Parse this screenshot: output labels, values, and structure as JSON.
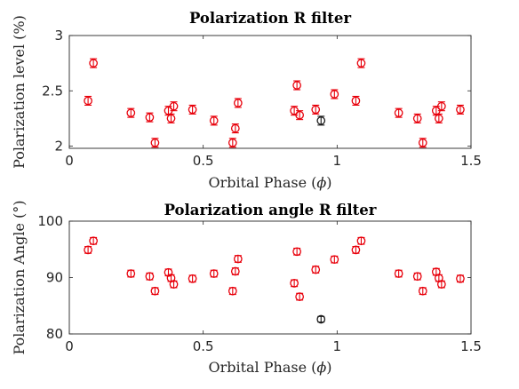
{
  "chart_data": [
    {
      "type": "scatter",
      "title": "Polarization R filter",
      "xlabel_prefix": "Orbital Phase (",
      "xlabel_symbol": "ϕ",
      "xlabel_suffix": ")",
      "ylabel": "Polarization level (%)",
      "xlim": [
        0,
        1.5
      ],
      "ylim": [
        1.98,
        3.0
      ],
      "xticks": [
        0,
        0.5,
        1,
        1.5
      ],
      "xtick_labels": [
        "0",
        "0.5",
        "1",
        "1.5"
      ],
      "yticks": [
        2,
        2.5,
        3
      ],
      "ytick_labels": [
        "2",
        "2.5",
        "3"
      ],
      "grid": false,
      "series": [
        {
          "color": "#e8000b",
          "marker": "circle-open",
          "errorbars": true,
          "points": [
            {
              "x": 0.07,
              "y": 2.41,
              "err": 0.04
            },
            {
              "x": 0.09,
              "y": 2.75,
              "err": 0.04
            },
            {
              "x": 0.23,
              "y": 2.3,
              "err": 0.04
            },
            {
              "x": 0.3,
              "y": 2.26,
              "err": 0.04
            },
            {
              "x": 0.32,
              "y": 2.03,
              "err": 0.04
            },
            {
              "x": 0.37,
              "y": 2.32,
              "err": 0.04
            },
            {
              "x": 0.38,
              "y": 2.25,
              "err": 0.04
            },
            {
              "x": 0.39,
              "y": 2.36,
              "err": 0.04
            },
            {
              "x": 0.46,
              "y": 2.33,
              "err": 0.04
            },
            {
              "x": 0.54,
              "y": 2.23,
              "err": 0.04
            },
            {
              "x": 0.61,
              "y": 2.03,
              "err": 0.04
            },
            {
              "x": 0.62,
              "y": 2.16,
              "err": 0.04
            },
            {
              "x": 0.63,
              "y": 2.39,
              "err": 0.04
            },
            {
              "x": 0.84,
              "y": 2.32,
              "err": 0.04
            },
            {
              "x": 0.85,
              "y": 2.55,
              "err": 0.04
            },
            {
              "x": 0.86,
              "y": 2.28,
              "err": 0.04
            },
            {
              "x": 0.92,
              "y": 2.33,
              "err": 0.04
            },
            {
              "x": 0.99,
              "y": 2.47,
              "err": 0.04
            },
            {
              "x": 1.07,
              "y": 2.41,
              "err": 0.04
            },
            {
              "x": 1.09,
              "y": 2.75,
              "err": 0.04
            },
            {
              "x": 1.23,
              "y": 2.3,
              "err": 0.04
            },
            {
              "x": 1.3,
              "y": 2.25,
              "err": 0.04
            },
            {
              "x": 1.32,
              "y": 2.03,
              "err": 0.04
            },
            {
              "x": 1.37,
              "y": 2.32,
              "err": 0.04
            },
            {
              "x": 1.38,
              "y": 2.25,
              "err": 0.04
            },
            {
              "x": 1.39,
              "y": 2.36,
              "err": 0.04
            },
            {
              "x": 1.46,
              "y": 2.33,
              "err": 0.04
            }
          ]
        },
        {
          "color": "#1a1a1a",
          "marker": "circle-open",
          "errorbars": true,
          "points": [
            {
              "x": 0.94,
              "y": 2.23,
              "err": 0.04
            }
          ]
        }
      ]
    },
    {
      "type": "scatter",
      "title": "Polarization angle R filter",
      "xlabel_prefix": "Orbital Phase (",
      "xlabel_symbol": "ϕ",
      "xlabel_suffix": ")",
      "ylabel": "Polarization Angle (°)",
      "xlim": [
        0,
        1.5
      ],
      "ylim": [
        80,
        100
      ],
      "xticks": [
        0,
        0.5,
        1,
        1.5
      ],
      "xtick_labels": [
        "0",
        "0.5",
        "1",
        "1.5"
      ],
      "yticks": [
        80,
        90,
        100
      ],
      "ytick_labels": [
        "80",
        "90",
        "100"
      ],
      "grid": false,
      "series": [
        {
          "color": "#e8000b",
          "marker": "circle-open",
          "errorbars": true,
          "points": [
            {
              "x": 0.07,
              "y": 94.9,
              "err": 0.6
            },
            {
              "x": 0.09,
              "y": 96.5,
              "err": 0.6
            },
            {
              "x": 0.23,
              "y": 90.7,
              "err": 0.6
            },
            {
              "x": 0.3,
              "y": 90.2,
              "err": 0.6
            },
            {
              "x": 0.32,
              "y": 87.6,
              "err": 0.6
            },
            {
              "x": 0.37,
              "y": 90.9,
              "err": 0.6
            },
            {
              "x": 0.38,
              "y": 89.9,
              "err": 0.6
            },
            {
              "x": 0.39,
              "y": 88.8,
              "err": 0.6
            },
            {
              "x": 0.46,
              "y": 89.8,
              "err": 0.6
            },
            {
              "x": 0.54,
              "y": 90.7,
              "err": 0.6
            },
            {
              "x": 0.61,
              "y": 87.6,
              "err": 0.6
            },
            {
              "x": 0.62,
              "y": 91.1,
              "err": 0.6
            },
            {
              "x": 0.63,
              "y": 93.3,
              "err": 0.6
            },
            {
              "x": 0.84,
              "y": 89.0,
              "err": 0.6
            },
            {
              "x": 0.85,
              "y": 94.6,
              "err": 0.6
            },
            {
              "x": 0.86,
              "y": 86.6,
              "err": 0.6
            },
            {
              "x": 0.92,
              "y": 91.4,
              "err": 0.6
            },
            {
              "x": 0.99,
              "y": 93.2,
              "err": 0.6
            },
            {
              "x": 1.07,
              "y": 94.9,
              "err": 0.6
            },
            {
              "x": 1.09,
              "y": 96.5,
              "err": 0.6
            },
            {
              "x": 1.23,
              "y": 90.7,
              "err": 0.6
            },
            {
              "x": 1.3,
              "y": 90.2,
              "err": 0.6
            },
            {
              "x": 1.32,
              "y": 87.6,
              "err": 0.6
            },
            {
              "x": 1.37,
              "y": 91.0,
              "err": 0.6
            },
            {
              "x": 1.38,
              "y": 89.9,
              "err": 0.6
            },
            {
              "x": 1.39,
              "y": 88.8,
              "err": 0.6
            },
            {
              "x": 1.46,
              "y": 89.8,
              "err": 0.6
            }
          ]
        },
        {
          "color": "#1a1a1a",
          "marker": "circle-open",
          "errorbars": true,
          "points": [
            {
              "x": 0.94,
              "y": 82.6,
              "err": 0.5
            }
          ]
        }
      ]
    }
  ]
}
